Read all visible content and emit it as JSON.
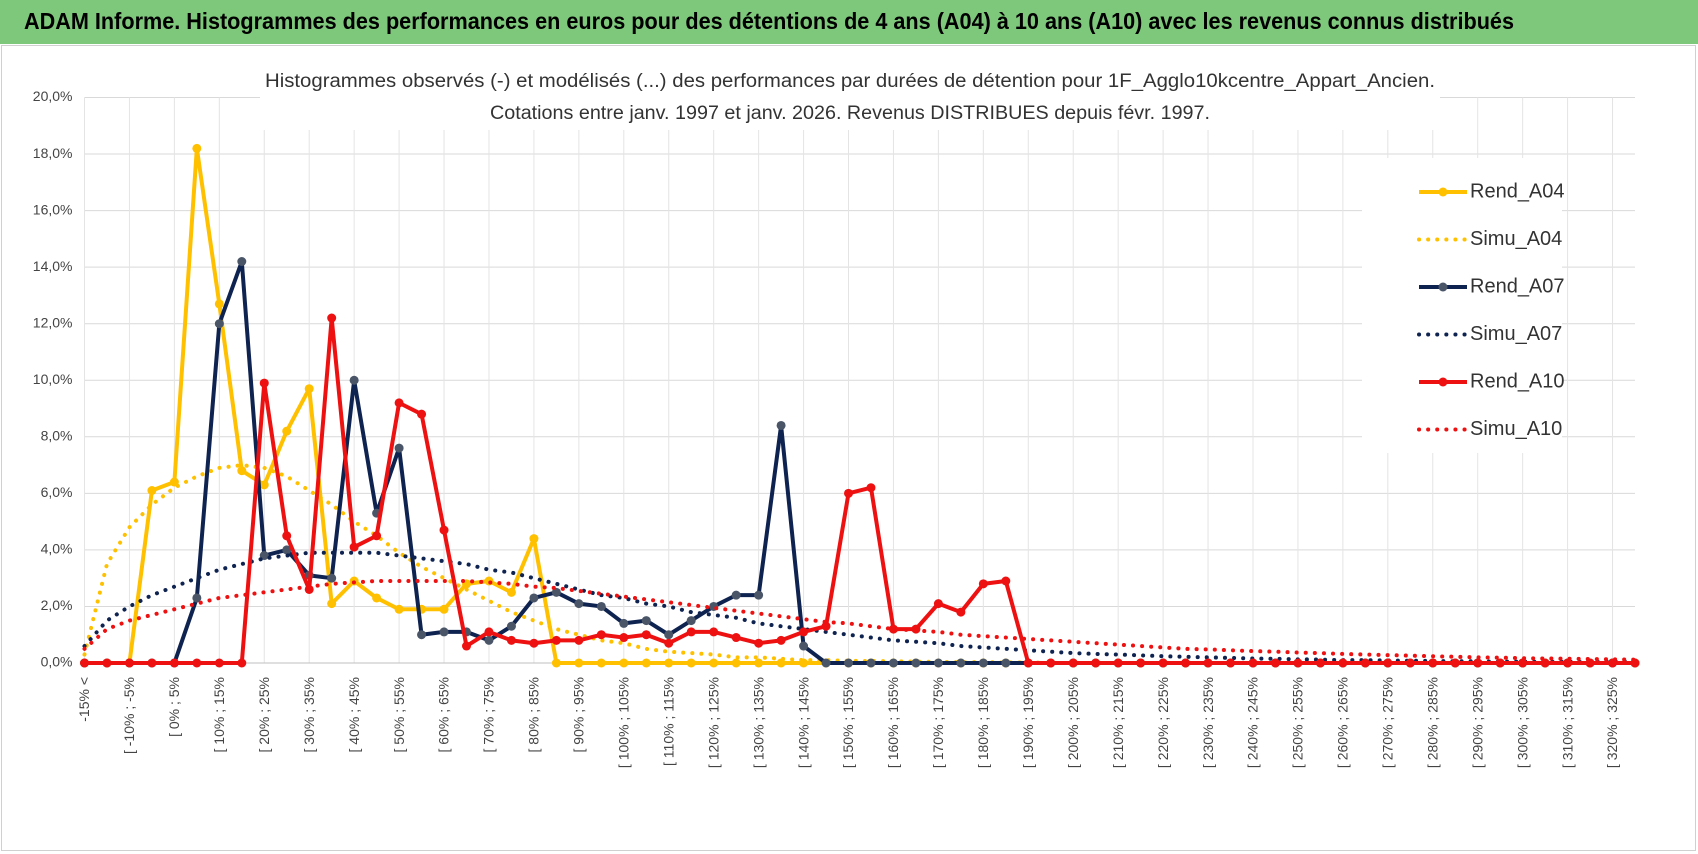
{
  "header": {
    "title": "ADAM Informe. Histogrammes des performances en euros pour des détentions de 4 ans (A04) à 10 ans (A10) avec les revenus connus distribués"
  },
  "chart_data": {
    "type": "line",
    "title": "Histogrammes observés (-) et modélisés (...) des performances par durées de détention pour 1F_Agglo10kcentre_Appart_Ancien.",
    "subtitle": "Cotations entre janv. 1997 et janv. 2026. Revenus DISTRIBUES depuis févr. 1997.",
    "categories": [
      "-15% <",
      null,
      "[ -10% ; -5%",
      null,
      "[ 0% ; 5%",
      null,
      "[ 10% ; 15%",
      null,
      "[ 20% ; 25%",
      null,
      "[ 30% ; 35%",
      null,
      "[ 40% ; 45%",
      null,
      "[ 50% ; 55%",
      null,
      "[ 60% ; 65%",
      null,
      "[ 70% ; 75%",
      null,
      "[ 80% ; 85%",
      null,
      "[ 90% ; 95%",
      null,
      "[ 100% ; 105%",
      null,
      "[ 110% ; 115%",
      null,
      "[ 120% ; 125%",
      null,
      "[ 130% ; 135%",
      null,
      "[ 140% ; 145%",
      null,
      "[ 150% ; 155%",
      null,
      "[ 160% ; 165%",
      null,
      "[ 170% ; 175%",
      null,
      "[ 180% ; 185%",
      null,
      "[ 190% ; 195%",
      null,
      "[ 200% ; 205%",
      null,
      "[ 210% ; 215%",
      null,
      "[ 220% ; 225%",
      null,
      "[ 230% ; 235%",
      null,
      "[ 240% ; 245%",
      null,
      "[ 250% ; 255%",
      null,
      "[ 260% ; 265%",
      null,
      "[ 270% ; 275%",
      null,
      "[ 280% ; 285%",
      null,
      "[ 290% ; 295%",
      null,
      "[ 300% ; 305%",
      null,
      "[ 310% ; 315%",
      null,
      "[ 320% ; 325%",
      null
    ],
    "series": [
      {
        "name": "Rend_A04",
        "color": "#ffc000",
        "style": "solid",
        "marker": true,
        "values": [
          0,
          0,
          0,
          6.1,
          6.4,
          18.2,
          12.7,
          6.8,
          6.3,
          8.2,
          9.7,
          2.1,
          2.9,
          2.3,
          1.9,
          1.9,
          1.9,
          2.8,
          2.9,
          2.5,
          4.4,
          0,
          0,
          0,
          0,
          0,
          0,
          0,
          0,
          0,
          0,
          0,
          0,
          0,
          0,
          0,
          0,
          0,
          0,
          0,
          0,
          0,
          0,
          0,
          0,
          0,
          0,
          0,
          0,
          0,
          0,
          0,
          0,
          0,
          0,
          0,
          0,
          0,
          0,
          0,
          0,
          0,
          0,
          0,
          0,
          0,
          0,
          0,
          0,
          0
        ]
      },
      {
        "name": "Simu_A04",
        "color": "#ffc000",
        "style": "dotted",
        "marker": false,
        "values": [
          0.3,
          3.5,
          4.8,
          5.6,
          6.2,
          6.6,
          6.9,
          7.0,
          6.9,
          6.6,
          6.1,
          5.6,
          5.0,
          4.5,
          3.9,
          3.4,
          3.0,
          2.6,
          2.2,
          1.8,
          1.5,
          1.2,
          1.0,
          0.8,
          0.7,
          0.5,
          0.4,
          0.35,
          0.3,
          0.2,
          0.2,
          0.15,
          0.1,
          0.1,
          0.08,
          0.07,
          0.06,
          0.05,
          0.04,
          0.03,
          0.03,
          0.02,
          0.02,
          0,
          0,
          0,
          0,
          0,
          0,
          0,
          0,
          0,
          0,
          0,
          0,
          0,
          0,
          0,
          0,
          0,
          0,
          0,
          0,
          0,
          0,
          0,
          0,
          0,
          0,
          0
        ]
      },
      {
        "name": "Rend_A07",
        "color": "#0f2350",
        "marker_color": "#4a5668",
        "style": "solid",
        "marker": true,
        "values": [
          0,
          0,
          0,
          0,
          0,
          2.3,
          12.0,
          14.2,
          3.8,
          4.0,
          3.1,
          3.0,
          10.0,
          5.3,
          7.6,
          1.0,
          1.1,
          1.1,
          0.8,
          1.3,
          2.3,
          2.5,
          2.1,
          2.0,
          1.4,
          1.5,
          1.0,
          1.5,
          2.0,
          2.4,
          2.4,
          8.4,
          0.6,
          0,
          0,
          0,
          0,
          0,
          0,
          0,
          0,
          0,
          0,
          0,
          0,
          0,
          0,
          0,
          0,
          0,
          0,
          0,
          0,
          0,
          0,
          0,
          0,
          0,
          0,
          0,
          0,
          0,
          0,
          0,
          0,
          0,
          0,
          0,
          0,
          0
        ]
      },
      {
        "name": "Simu_A07",
        "color": "#0f2350",
        "style": "dotted",
        "marker": false,
        "values": [
          0.6,
          1.5,
          2.0,
          2.4,
          2.7,
          3.0,
          3.3,
          3.5,
          3.7,
          3.8,
          3.9,
          3.9,
          3.9,
          3.9,
          3.8,
          3.7,
          3.6,
          3.5,
          3.3,
          3.2,
          3.0,
          2.8,
          2.6,
          2.4,
          2.3,
          2.1,
          2.0,
          1.8,
          1.7,
          1.6,
          1.4,
          1.3,
          1.2,
          1.1,
          1.0,
          0.9,
          0.8,
          0.75,
          0.7,
          0.6,
          0.55,
          0.5,
          0.45,
          0.4,
          0.35,
          0.32,
          0.3,
          0.27,
          0.24,
          0.22,
          0.2,
          0.18,
          0.16,
          0.15,
          0.13,
          0.12,
          0.1,
          0.1,
          0.09,
          0.08,
          0.07,
          0.06,
          0.06,
          0.05,
          0.05,
          0.04,
          0.04,
          0.03,
          0.03,
          0.03
        ]
      },
      {
        "name": "Rend_A10",
        "color": "#ee1111",
        "style": "solid",
        "marker": true,
        "values": [
          0,
          0,
          0,
          0,
          0,
          0,
          0,
          0,
          9.9,
          4.5,
          2.6,
          12.2,
          4.1,
          4.5,
          9.2,
          8.8,
          4.7,
          0.6,
          1.1,
          0.8,
          0.7,
          0.8,
          0.8,
          1.0,
          0.9,
          1.0,
          0.7,
          1.1,
          1.1,
          0.9,
          0.7,
          0.8,
          1.1,
          1.3,
          6.0,
          6.2,
          1.2,
          1.2,
          2.1,
          1.8,
          2.8,
          2.9,
          0,
          0,
          0,
          0,
          0,
          0,
          0,
          0,
          0,
          0,
          0,
          0,
          0,
          0,
          0,
          0,
          0,
          0,
          0,
          0,
          0,
          0,
          0,
          0,
          0,
          0,
          0,
          0
        ]
      },
      {
        "name": "Simu_A10",
        "color": "#ee1111",
        "style": "dotted",
        "marker": false,
        "values": [
          0.5,
          1.2,
          1.5,
          1.7,
          1.9,
          2.1,
          2.3,
          2.4,
          2.5,
          2.6,
          2.7,
          2.8,
          2.85,
          2.9,
          2.9,
          2.9,
          2.9,
          2.9,
          2.85,
          2.8,
          2.7,
          2.65,
          2.55,
          2.45,
          2.35,
          2.25,
          2.15,
          2.05,
          1.95,
          1.85,
          1.75,
          1.65,
          1.55,
          1.45,
          1.4,
          1.3,
          1.2,
          1.15,
          1.1,
          1.0,
          0.95,
          0.9,
          0.85,
          0.8,
          0.75,
          0.7,
          0.65,
          0.6,
          0.55,
          0.5,
          0.48,
          0.45,
          0.42,
          0.4,
          0.37,
          0.35,
          0.32,
          0.3,
          0.28,
          0.26,
          0.24,
          0.22,
          0.2,
          0.19,
          0.17,
          0.16,
          0.15,
          0.14,
          0.13,
          0.12
        ]
      }
    ],
    "ylim": [
      0,
      20
    ],
    "yticks": [
      {
        "value": 0,
        "label": "0,0%"
      },
      {
        "value": 2,
        "label": "2,0%"
      },
      {
        "value": 4,
        "label": "4,0%"
      },
      {
        "value": 6,
        "label": "6,0%"
      },
      {
        "value": 8,
        "label": "8,0%"
      },
      {
        "value": 10,
        "label": "10,0%"
      },
      {
        "value": 12,
        "label": "12,0%"
      },
      {
        "value": 14,
        "label": "14,0%"
      },
      {
        "value": 16,
        "label": "16,0%"
      },
      {
        "value": 18,
        "label": "18,0%"
      },
      {
        "value": 20,
        "label": "20,0%"
      }
    ],
    "grid": true,
    "xgrid": true,
    "legend": "right"
  }
}
